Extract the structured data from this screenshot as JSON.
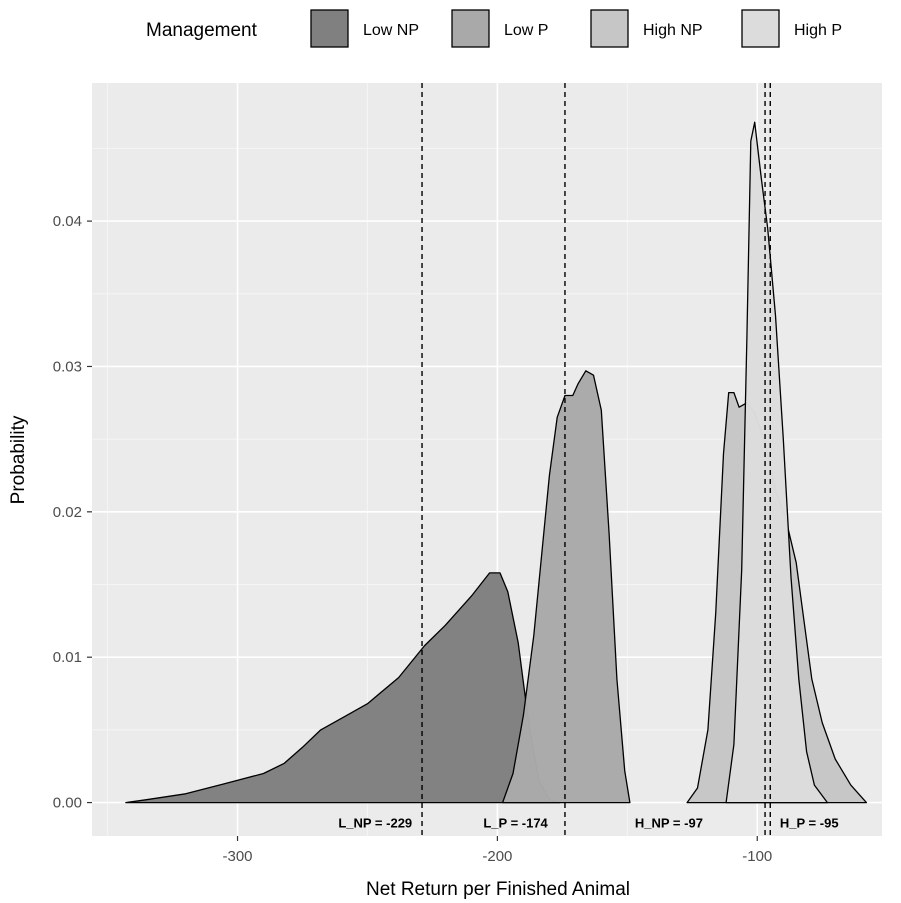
{
  "chart_data": {
    "type": "area",
    "xlabel": "Net Return per Finished Animal",
    "ylabel": "Probability",
    "xlim": [
      -356,
      -52
    ],
    "ylim": [
      -0.0023,
      0.0495
    ],
    "x_ticks": [
      -300,
      -200,
      -100
    ],
    "x_tick_labels": [
      "-300",
      "-200",
      "-100"
    ],
    "y_ticks": [
      0.0,
      0.01,
      0.02,
      0.03,
      0.04
    ],
    "y_tick_labels": [
      "0.00",
      "0.01",
      "0.02",
      "0.03",
      "0.04"
    ],
    "grid": true,
    "legend": {
      "title": "Management",
      "position": "top",
      "entries": [
        "Low NP",
        "Low P",
        "High NP",
        "High P"
      ]
    },
    "series": [
      {
        "name": "Low NP",
        "fill": "#808080",
        "points": [
          [
            -343,
            0
          ],
          [
            -335,
            0.0002
          ],
          [
            -320,
            0.0006
          ],
          [
            -305,
            0.0013
          ],
          [
            -290,
            0.002
          ],
          [
            -282,
            0.0027
          ],
          [
            -275,
            0.0038
          ],
          [
            -268,
            0.005
          ],
          [
            -260,
            0.0058
          ],
          [
            -250,
            0.0068
          ],
          [
            -238,
            0.0086
          ],
          [
            -228,
            0.0108
          ],
          [
            -220,
            0.0122
          ],
          [
            -210,
            0.0142
          ],
          [
            -203,
            0.0158
          ],
          [
            -199,
            0.0158
          ],
          [
            -196,
            0.0145
          ],
          [
            -192,
            0.011
          ],
          [
            -188,
            0.0055
          ],
          [
            -184,
            0.0015
          ],
          [
            -180,
            0.0002
          ],
          [
            -176,
            0
          ]
        ]
      },
      {
        "name": "Low P",
        "fill": "#a9a9a9",
        "points": [
          [
            -198,
            0
          ],
          [
            -194,
            0.002
          ],
          [
            -190,
            0.006
          ],
          [
            -186,
            0.0115
          ],
          [
            -183,
            0.017
          ],
          [
            -180,
            0.0225
          ],
          [
            -177,
            0.0265
          ],
          [
            -174,
            0.028
          ],
          [
            -171,
            0.028
          ],
          [
            -169,
            0.0288
          ],
          [
            -166,
            0.0297
          ],
          [
            -163,
            0.0294
          ],
          [
            -160,
            0.027
          ],
          [
            -157,
            0.0185
          ],
          [
            -154,
            0.0085
          ],
          [
            -151,
            0.0022
          ],
          [
            -149,
            0
          ]
        ]
      },
      {
        "name": "High NP",
        "fill": "#c6c6c6",
        "points": [
          [
            -127,
            0
          ],
          [
            -123,
            0.001
          ],
          [
            -119,
            0.005
          ],
          [
            -116,
            0.013
          ],
          [
            -113,
            0.024
          ],
          [
            -111,
            0.0282
          ],
          [
            -109,
            0.0282
          ],
          [
            -107,
            0.0272
          ],
          [
            -104,
            0.0275
          ],
          [
            -101,
            0.0268
          ],
          [
            -97,
            0.0248
          ],
          [
            -93,
            0.0215
          ],
          [
            -89,
            0.0195
          ],
          [
            -85,
            0.0165
          ],
          [
            -82,
            0.0125
          ],
          [
            -79,
            0.0085
          ],
          [
            -75,
            0.0055
          ],
          [
            -70,
            0.003
          ],
          [
            -64,
            0.0012
          ],
          [
            -58,
            0
          ]
        ]
      },
      {
        "name": "High P",
        "fill": "#dcdcdc",
        "points": [
          [
            -112,
            0
          ],
          [
            -109,
            0.004
          ],
          [
            -106,
            0.016
          ],
          [
            -104,
            0.032
          ],
          [
            -102.5,
            0.0455
          ],
          [
            -101,
            0.0468
          ],
          [
            -98.5,
            0.043
          ],
          [
            -96,
            0.0395
          ],
          [
            -93,
            0.0335
          ],
          [
            -90,
            0.025
          ],
          [
            -87,
            0.0155
          ],
          [
            -84,
            0.0085
          ],
          [
            -81,
            0.0035
          ],
          [
            -78,
            0.0012
          ],
          [
            -73,
            0
          ]
        ]
      }
    ],
    "vlines": [
      {
        "x": -229,
        "label": "L_NP = -229"
      },
      {
        "x": -174,
        "label": "L_P = -174"
      },
      {
        "x": -97,
        "label": "H_NP = -97"
      },
      {
        "x": -95,
        "label": "H_P = -95"
      }
    ],
    "annotation_x": [
      -247,
      -193,
      -134,
      -80
    ]
  }
}
